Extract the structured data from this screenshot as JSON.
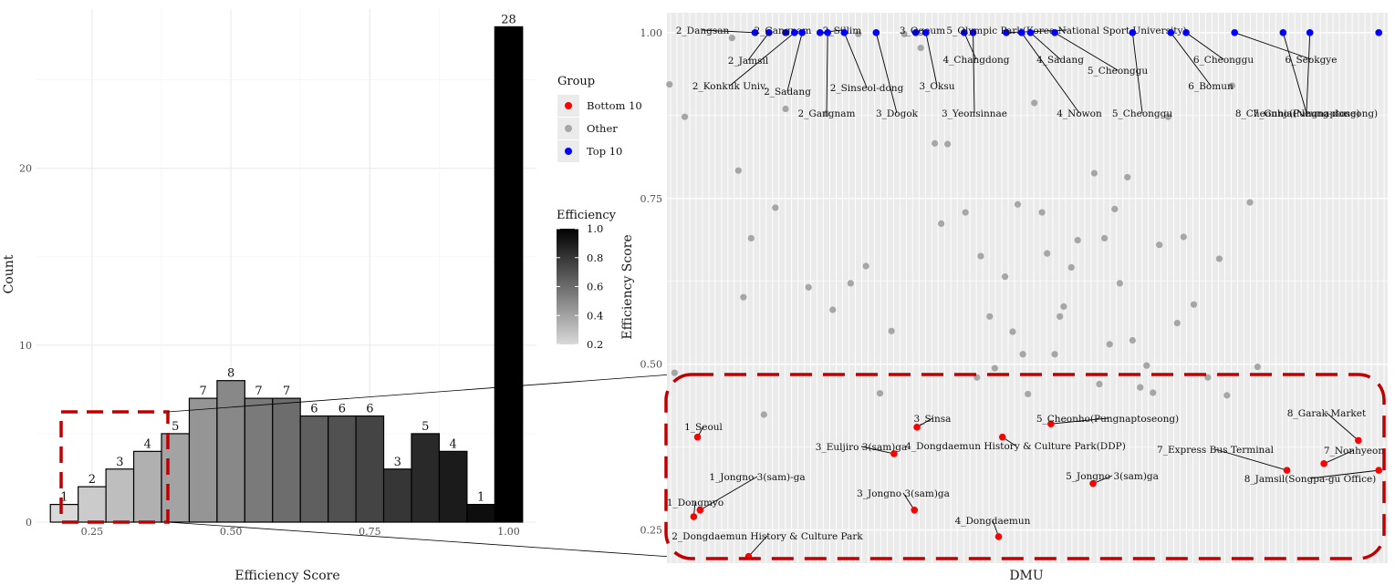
{
  "chart_data": [
    {
      "type": "bar",
      "subtype": "histogram",
      "xlabel": "Efficiency Score",
      "ylabel": "Count",
      "x_ticks": [
        "0.25",
        "0.50",
        "0.75",
        "1.00"
      ],
      "y_ticks": [
        "0",
        "10",
        "20"
      ],
      "xlim": [
        0.15,
        1.05
      ],
      "ylim": [
        0,
        29
      ],
      "bin_width": 0.05,
      "bin_centers": [
        0.2,
        0.25,
        0.3,
        0.35,
        0.4,
        0.45,
        0.5,
        0.55,
        0.6,
        0.65,
        0.7,
        0.75,
        0.8,
        0.85,
        0.9,
        0.95,
        1.0
      ],
      "values": [
        1,
        2,
        3,
        4,
        5,
        7,
        8,
        7,
        7,
        6,
        6,
        6,
        3,
        5,
        4,
        1,
        28
      ],
      "fill": "grayscale by efficiency (light = low, black = high)",
      "highlight_box": "bins 0.20–0.35 (dashed red)",
      "legend": {
        "title": "Efficiency",
        "ticks": [
          "1.0",
          "0.8",
          "0.6",
          "0.4",
          "0.2"
        ],
        "low_color": "#d9d9d9",
        "high_color": "#000000"
      },
      "grid": true
    },
    {
      "type": "scatter",
      "xlabel": "DMU",
      "ylabel": "Efficiency Score",
      "y_ticks": [
        "0.25",
        "0.50",
        "0.75",
        "1.00"
      ],
      "ylim": [
        0.2,
        1.03
      ],
      "x_ticks_shown": false,
      "legend": {
        "title": "Group",
        "items": [
          {
            "label": "Bottom 10",
            "color": "#ff0000"
          },
          {
            "label": "Other",
            "color": "#a6a6a6"
          },
          {
            "label": "Top 10",
            "color": "#0000ff"
          }
        ]
      },
      "highlight_box": "efficiency below 0.45 (dashed red, rounded)",
      "top10": [
        {
          "label": "2_Dangsan",
          "x": 6.9,
          "y": 1.0
        },
        {
          "label": "2_Jamsil",
          "x": 8.0,
          "y": 1.0
        },
        {
          "label": "2_Gangnam",
          "x": 9.3,
          "y": 1.0
        },
        {
          "label": "2_Konkuk Univ.",
          "x": 10.0,
          "y": 1.0
        },
        {
          "label": "2_Sadang",
          "x": 10.6,
          "y": 1.0
        },
        {
          "label": "2_Sillim",
          "x": 12.0,
          "y": 1.0
        },
        {
          "label": "2_Gangnam",
          "x": 12.6,
          "y": 1.0
        },
        {
          "label": "2_Sinseol-dong",
          "x": 13.9,
          "y": 1.0
        },
        {
          "label": "3_Dogok",
          "x": 16.4,
          "y": 1.0
        },
        {
          "label": "3_Ogeum",
          "x": 19.5,
          "y": 1.0
        },
        {
          "label": "3_Oksu",
          "x": 20.3,
          "y": 1.0
        },
        {
          "label": "4_Changdong",
          "x": 23.3,
          "y": 1.0
        },
        {
          "label": "3_Yeonsinnae",
          "x": 24.0,
          "y": 1.0
        },
        {
          "label": "5_Olympic Park(Korea National Sport University)",
          "x": 26.6,
          "y": 1.0
        },
        {
          "label": "4_Nowon",
          "x": 27.8,
          "y": 1.0
        },
        {
          "label": "4_Sadang",
          "x": 28.5,
          "y": 1.0
        },
        {
          "label": "5_Cheonggu",
          "x": 30.4,
          "y": 1.0
        },
        {
          "label": "5_Cheonggu",
          "x": 36.5,
          "y": 1.0
        },
        {
          "label": "6_Bomun",
          "x": 39.5,
          "y": 1.0
        },
        {
          "label": "6_Cheonggu",
          "x": 40.7,
          "y": 1.0
        },
        {
          "label": "6_Seokgye",
          "x": 44.5,
          "y": 1.0
        },
        {
          "label": "7_Gunja(Neung-dong)",
          "x": 48.3,
          "y": 1.0
        },
        {
          "label": "8_Cheonho(Pungnaptoseong)",
          "x": 50.4,
          "y": 1.0
        },
        {
          "label": "",
          "x": 55.8,
          "y": 1.0
        }
      ],
      "bottom10": [
        {
          "label": "1_Seoul",
          "x": 2.4,
          "y": 0.39
        },
        {
          "label": "1_Jongno 3(sam)-ga",
          "x": 2.6,
          "y": 0.28
        },
        {
          "label": "1_Dongmyo",
          "x": 2.1,
          "y": 0.27
        },
        {
          "label": "2_Dongdaemun History & Culture Park",
          "x": 6.4,
          "y": 0.21
        },
        {
          "label": "3_Euljiro 3(sam)ga",
          "x": 17.8,
          "y": 0.365
        },
        {
          "label": "3_Jongno 3(sam)ga",
          "x": 19.4,
          "y": 0.28
        },
        {
          "label": "3_Sinsa",
          "x": 19.6,
          "y": 0.405
        },
        {
          "label": "4_Dongdaemun History & Culture Park(DDP)",
          "x": 26.3,
          "y": 0.39
        },
        {
          "label": "4_Dongdaemun",
          "x": 26.0,
          "y": 0.24
        },
        {
          "label": "5_Cheonho(Pungnaptoseong)",
          "x": 30.1,
          "y": 0.41
        },
        {
          "label": "5_Jongno 3(sam)ga",
          "x": 33.4,
          "y": 0.32
        },
        {
          "label": "8_Garak Market",
          "x": 54.2,
          "y": 0.385
        },
        {
          "label": "7_Express Bus Terminal",
          "x": 48.6,
          "y": 0.34
        },
        {
          "label": "7_Nonhyeon",
          "x": 51.5,
          "y": 0.35
        },
        {
          "label": "8_Jamsil(Songpa-gu Office)",
          "x": 55.8,
          "y": 0.34
        }
      ],
      "other": [
        [
          0.2,
          0.922
        ],
        [
          0.6,
          0.487
        ],
        [
          1.4,
          0.873
        ],
        [
          5.1,
          0.992
        ],
        [
          5.6,
          0.792
        ],
        [
          6.0,
          0.601
        ],
        [
          6.6,
          0.69
        ],
        [
          7.6,
          0.424
        ],
        [
          8.5,
          0.736
        ],
        [
          9.3,
          0.885
        ],
        [
          11.1,
          0.616
        ],
        [
          12.5,
          0.878
        ],
        [
          13.0,
          0.582
        ],
        [
          14.4,
          0.622
        ],
        [
          15.0,
          0.998
        ],
        [
          15.6,
          0.648
        ],
        [
          16.7,
          0.456
        ],
        [
          17.6,
          0.55
        ],
        [
          18.6,
          0.998
        ],
        [
          19.9,
          0.977
        ],
        [
          21.0,
          0.833
        ],
        [
          21.5,
          0.712
        ],
        [
          22.0,
          0.832
        ],
        [
          23.4,
          0.729
        ],
        [
          24.3,
          0.48
        ],
        [
          24.6,
          0.663
        ],
        [
          25.3,
          0.572
        ],
        [
          25.7,
          0.494
        ],
        [
          26.5,
          0.632
        ],
        [
          27.1,
          0.549
        ],
        [
          27.5,
          0.741
        ],
        [
          27.9,
          0.515
        ],
        [
          28.3,
          0.455
        ],
        [
          28.8,
          0.894
        ],
        [
          29.4,
          0.729
        ],
        [
          29.8,
          0.667
        ],
        [
          30.4,
          0.515
        ],
        [
          30.8,
          0.572
        ],
        [
          31.1,
          0.587
        ],
        [
          31.7,
          0.646
        ],
        [
          32.2,
          0.687
        ],
        [
          33.5,
          0.788
        ],
        [
          33.9,
          0.47
        ],
        [
          34.3,
          0.69
        ],
        [
          34.7,
          0.53
        ],
        [
          35.1,
          0.734
        ],
        [
          35.5,
          0.622
        ],
        [
          36.1,
          0.782
        ],
        [
          36.5,
          0.536
        ],
        [
          37.1,
          0.465
        ],
        [
          37.6,
          0.498
        ],
        [
          38.1,
          0.457
        ],
        [
          38.6,
          0.68
        ],
        [
          39.3,
          0.873
        ],
        [
          40.0,
          0.562
        ],
        [
          40.5,
          0.692
        ],
        [
          41.3,
          0.59
        ],
        [
          42.4,
          0.48
        ],
        [
          43.3,
          0.659
        ],
        [
          43.9,
          0.453
        ],
        [
          44.3,
          0.92
        ],
        [
          45.7,
          0.744
        ],
        [
          46.3,
          0.496
        ]
      ],
      "grid": true
    }
  ]
}
